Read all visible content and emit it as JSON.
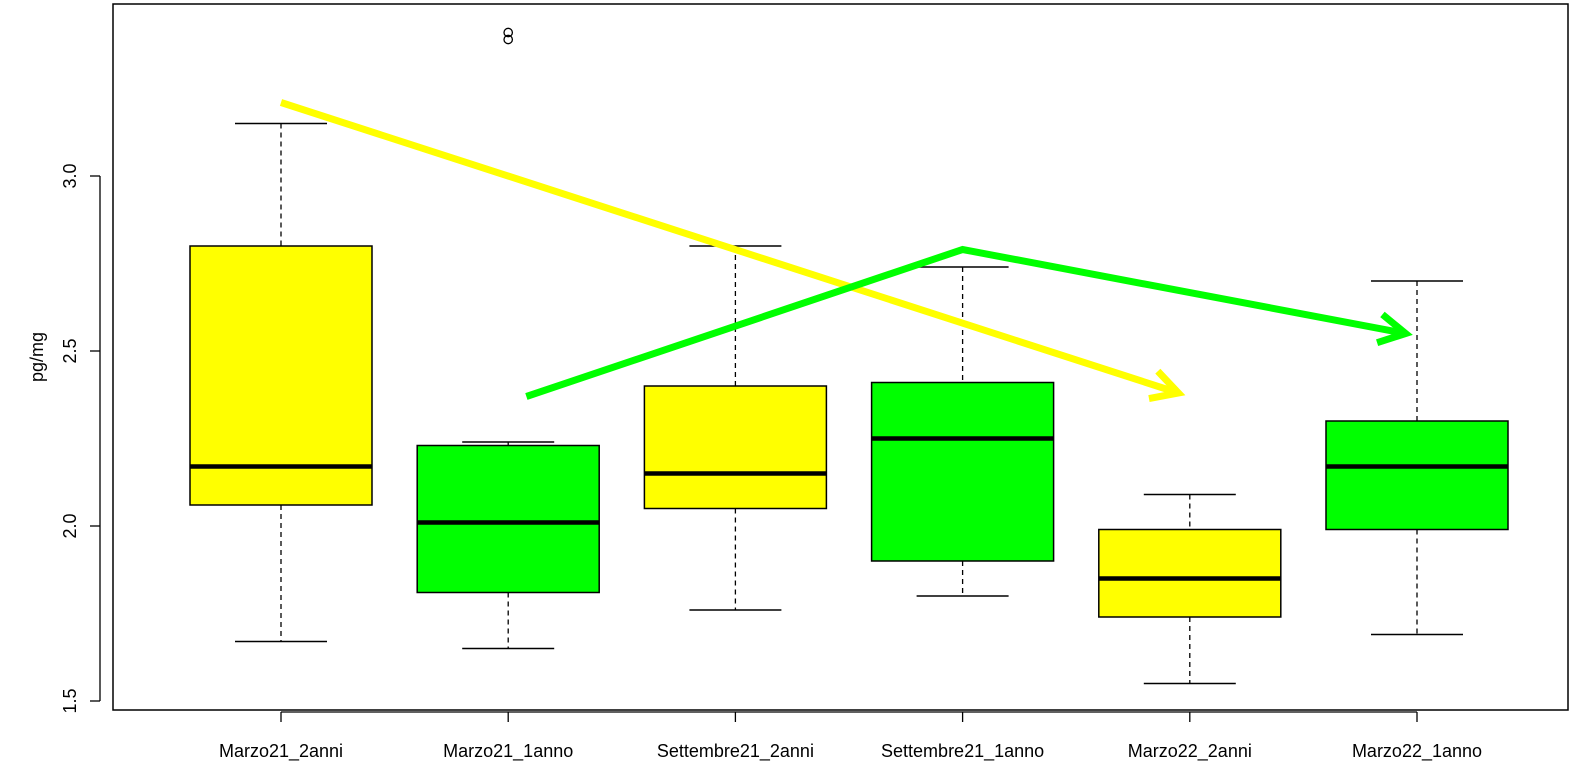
{
  "chart_data": {
    "type": "boxplot",
    "ylabel": "pg/mg",
    "ylim": [
      1.5,
      3.5
    ],
    "yticks": [
      "1.5",
      "2.0",
      "2.5",
      "3.0"
    ],
    "categories": [
      "Marzo21_2anni",
      "Marzo21_1anno",
      "Settembre21_2anni",
      "Settembre21_1anno",
      "Marzo22_2anni",
      "Marzo22_1anno"
    ],
    "boxes": [
      {
        "category": "Marzo21_2anni",
        "color": "#ffff00",
        "whisker_low": 1.67,
        "q1": 2.06,
        "median": 2.17,
        "q3": 2.8,
        "whisker_high": 3.15,
        "outliers": []
      },
      {
        "category": "Marzo21_1anno",
        "color": "#00ff00",
        "whisker_low": 1.65,
        "q1": 1.81,
        "median": 2.01,
        "q3": 2.23,
        "whisker_high": 2.24,
        "outliers": [
          3.39,
          3.41
        ]
      },
      {
        "category": "Settembre21_2anni",
        "color": "#ffff00",
        "whisker_low": 1.76,
        "q1": 2.05,
        "median": 2.15,
        "q3": 2.4,
        "whisker_high": 2.8,
        "outliers": []
      },
      {
        "category": "Settembre21_1anno",
        "color": "#00ff00",
        "whisker_low": 1.8,
        "q1": 1.9,
        "median": 2.25,
        "q3": 2.41,
        "whisker_high": 2.74,
        "outliers": []
      },
      {
        "category": "Marzo22_2anni",
        "color": "#ffff00",
        "whisker_low": 1.55,
        "q1": 1.74,
        "median": 1.85,
        "q3": 1.99,
        "whisker_high": 2.09,
        "outliers": []
      },
      {
        "category": "Marzo22_1anno",
        "color": "#00ff00",
        "whisker_low": 1.69,
        "q1": 1.99,
        "median": 2.17,
        "q3": 2.3,
        "whisker_high": 2.7,
        "outliers": []
      }
    ],
    "trend_arrows": [
      {
        "color": "#ffff00",
        "points": [
          [
            0.0,
            3.21
          ],
          [
            3.95,
            2.38
          ]
        ]
      },
      {
        "color": "#00ff00",
        "points": [
          [
            1.08,
            2.37
          ],
          [
            3.0,
            2.79
          ],
          [
            4.95,
            2.55
          ]
        ]
      }
    ]
  }
}
